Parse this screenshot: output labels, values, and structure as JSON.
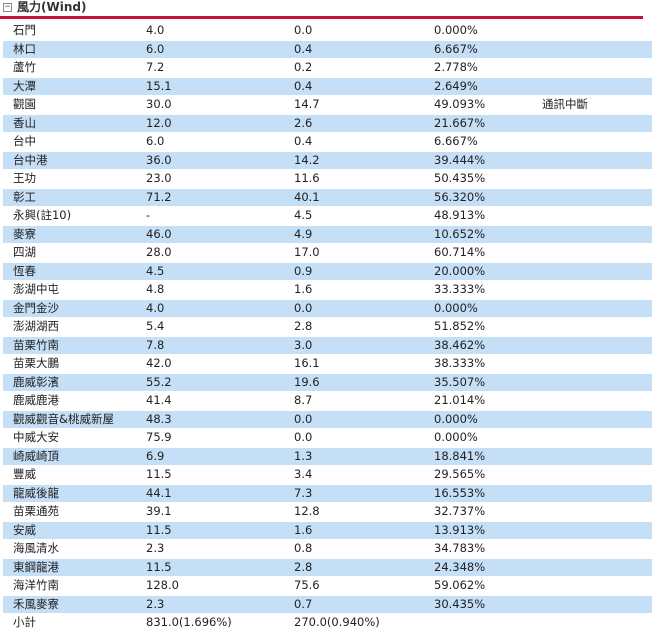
{
  "section": {
    "toggle_icon": "minus-box-icon",
    "toggle_glyph": "−",
    "title": "風力(Wind)",
    "accent_color": "#c8123c"
  },
  "row_alt_color": "#c4dff6",
  "rows": [
    {
      "name": "石門",
      "capacity": "4.0",
      "output": "0.0",
      "ratio": "0.000%",
      "note": ""
    },
    {
      "name": "林口",
      "capacity": "6.0",
      "output": "0.4",
      "ratio": "6.667%",
      "note": ""
    },
    {
      "name": "蘆竹",
      "capacity": "7.2",
      "output": "0.2",
      "ratio": "2.778%",
      "note": ""
    },
    {
      "name": "大潭",
      "capacity": "15.1",
      "output": "0.4",
      "ratio": "2.649%",
      "note": ""
    },
    {
      "name": "觀園",
      "capacity": "30.0",
      "output": "14.7",
      "ratio": "49.093%",
      "note": "通訊中斷"
    },
    {
      "name": "香山",
      "capacity": "12.0",
      "output": "2.6",
      "ratio": "21.667%",
      "note": ""
    },
    {
      "name": "台中",
      "capacity": "6.0",
      "output": "0.4",
      "ratio": "6.667%",
      "note": ""
    },
    {
      "name": "台中港",
      "capacity": "36.0",
      "output": "14.2",
      "ratio": "39.444%",
      "note": ""
    },
    {
      "name": "王功",
      "capacity": "23.0",
      "output": "11.6",
      "ratio": "50.435%",
      "note": ""
    },
    {
      "name": "彰工",
      "capacity": "71.2",
      "output": "40.1",
      "ratio": "56.320%",
      "note": ""
    },
    {
      "name": "永興(註10)",
      "capacity": "-",
      "output": "4.5",
      "ratio": "48.913%",
      "note": ""
    },
    {
      "name": "麥寮",
      "capacity": "46.0",
      "output": "4.9",
      "ratio": "10.652%",
      "note": ""
    },
    {
      "name": "四湖",
      "capacity": "28.0",
      "output": "17.0",
      "ratio": "60.714%",
      "note": ""
    },
    {
      "name": "恆春",
      "capacity": "4.5",
      "output": "0.9",
      "ratio": "20.000%",
      "note": ""
    },
    {
      "name": "澎湖中屯",
      "capacity": "4.8",
      "output": "1.6",
      "ratio": "33.333%",
      "note": ""
    },
    {
      "name": "金門金沙",
      "capacity": "4.0",
      "output": "0.0",
      "ratio": "0.000%",
      "note": ""
    },
    {
      "name": "澎湖湖西",
      "capacity": "5.4",
      "output": "2.8",
      "ratio": "51.852%",
      "note": ""
    },
    {
      "name": "苗栗竹南",
      "capacity": "7.8",
      "output": "3.0",
      "ratio": "38.462%",
      "note": ""
    },
    {
      "name": "苗栗大鵬",
      "capacity": "42.0",
      "output": "16.1",
      "ratio": "38.333%",
      "note": ""
    },
    {
      "name": "鹿威彰濱",
      "capacity": "55.2",
      "output": "19.6",
      "ratio": "35.507%",
      "note": ""
    },
    {
      "name": "鹿威鹿港",
      "capacity": "41.4",
      "output": "8.7",
      "ratio": "21.014%",
      "note": ""
    },
    {
      "name": "觀威觀音&桃威新屋",
      "capacity": "48.3",
      "output": "0.0",
      "ratio": "0.000%",
      "note": ""
    },
    {
      "name": "中威大安",
      "capacity": "75.9",
      "output": "0.0",
      "ratio": "0.000%",
      "note": ""
    },
    {
      "name": "崎威崎頂",
      "capacity": "6.9",
      "output": "1.3",
      "ratio": "18.841%",
      "note": ""
    },
    {
      "name": "豐威",
      "capacity": "11.5",
      "output": "3.4",
      "ratio": "29.565%",
      "note": ""
    },
    {
      "name": "龍威後龍",
      "capacity": "44.1",
      "output": "7.3",
      "ratio": "16.553%",
      "note": ""
    },
    {
      "name": "苗栗通苑",
      "capacity": "39.1",
      "output": "12.8",
      "ratio": "32.737%",
      "note": ""
    },
    {
      "name": "安威",
      "capacity": "11.5",
      "output": "1.6",
      "ratio": "13.913%",
      "note": ""
    },
    {
      "name": "海風清水",
      "capacity": "2.3",
      "output": "0.8",
      "ratio": "34.783%",
      "note": ""
    },
    {
      "name": "東鋼龍港",
      "capacity": "11.5",
      "output": "2.8",
      "ratio": "24.348%",
      "note": ""
    },
    {
      "name": "海洋竹南",
      "capacity": "128.0",
      "output": "75.6",
      "ratio": "59.062%",
      "note": ""
    },
    {
      "name": "禾風麥寮",
      "capacity": "2.3",
      "output": "0.7",
      "ratio": "30.435%",
      "note": ""
    }
  ],
  "total": {
    "name": "小計",
    "capacity": "831.0(1.696%)",
    "output": "270.0(0.940%)",
    "ratio": "",
    "note": ""
  }
}
